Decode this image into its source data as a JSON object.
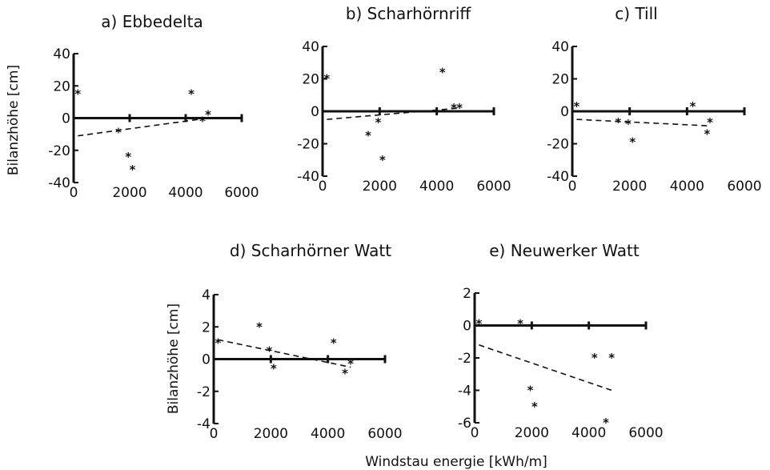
{
  "chart_data": [
    {
      "type": "scatter",
      "title": "a) Ebbedelta",
      "ylabel": "Bilanzhöhe [cm]",
      "xlabel": "",
      "xlim": [
        0,
        6000
      ],
      "ylim": [
        -40,
        40
      ],
      "xticks": [
        "0",
        "2000",
        "4000",
        "6000"
      ],
      "yticks": [
        "40",
        "20",
        "0",
        "-20",
        "-40"
      ],
      "x": [
        150,
        1600,
        1950,
        2100,
        4200,
        4600,
        4800
      ],
      "y": [
        15,
        -9,
        -24,
        -32,
        15,
        -2,
        2
      ],
      "trend": {
        "x": [
          150,
          4800
        ],
        "y": [
          -11,
          0
        ]
      }
    },
    {
      "type": "scatter",
      "title": "b)  Scharhörnriff",
      "ylabel": "",
      "xlabel": "",
      "xlim": [
        0,
        6000
      ],
      "ylim": [
        -40,
        40
      ],
      "xticks": [
        "0",
        "2000",
        "4000",
        "6000"
      ],
      "yticks": [
        "40",
        "20",
        "0",
        "-20",
        "-40"
      ],
      "x": [
        150,
        1600,
        1950,
        2100,
        4200,
        4600,
        4800
      ],
      "y": [
        20,
        -15,
        -7,
        -30,
        24,
        2,
        2
      ],
      "trend": {
        "x": [
          150,
          4800
        ],
        "y": [
          -5,
          2
        ]
      }
    },
    {
      "type": "scatter",
      "title": "c)  Till",
      "ylabel": "",
      "xlabel": "",
      "xlim": [
        0,
        6000
      ],
      "ylim": [
        -40,
        40
      ],
      "xticks": [
        "0",
        "2000",
        "4000",
        "6000"
      ],
      "yticks": [
        "40",
        "20",
        "0",
        "-20",
        "-40"
      ],
      "x": [
        150,
        1600,
        1950,
        2100,
        4200,
        4700,
        4800
      ],
      "y": [
        3,
        -7,
        -8,
        -19,
        3,
        -14,
        -7
      ],
      "trend": {
        "x": [
          150,
          4800
        ],
        "y": [
          -5,
          -9
        ]
      }
    },
    {
      "type": "scatter",
      "title": "d)  Scharhörner Watt",
      "ylabel": "Bilanzhöhe [cm]",
      "xlabel": "",
      "xlim": [
        0,
        6000
      ],
      "ylim": [
        -4,
        4
      ],
      "xticks": [
        "0",
        "2000",
        "4000",
        "6000"
      ],
      "yticks": [
        "4",
        "2",
        "0",
        "-2",
        "-4"
      ],
      "x": [
        150,
        1600,
        1950,
        2100,
        4200,
        4600,
        4800
      ],
      "y": [
        1,
        2,
        0.5,
        -0.6,
        1,
        -0.9,
        -0.3
      ],
      "trend": {
        "x": [
          150,
          4800
        ],
        "y": [
          1.2,
          -0.5
        ]
      }
    },
    {
      "type": "scatter",
      "title": "e)  Neuwerker Watt",
      "ylabel": "",
      "xlabel": "Windstau energie  [kWh/m]",
      "xlim": [
        0,
        6000
      ],
      "ylim": [
        -6,
        2
      ],
      "xticks": [
        "0",
        "2000",
        "4000",
        "6000"
      ],
      "yticks": [
        "2",
        "0",
        "-2",
        "-4",
        "-6"
      ],
      "x": [
        150,
        1600,
        1950,
        2100,
        4200,
        4600,
        4800
      ],
      "y": [
        0.1,
        0.1,
        -4,
        -5,
        -2,
        -6,
        -2
      ],
      "trend": {
        "x": [
          150,
          4800
        ],
        "y": [
          -1.2,
          -4
        ]
      }
    }
  ]
}
